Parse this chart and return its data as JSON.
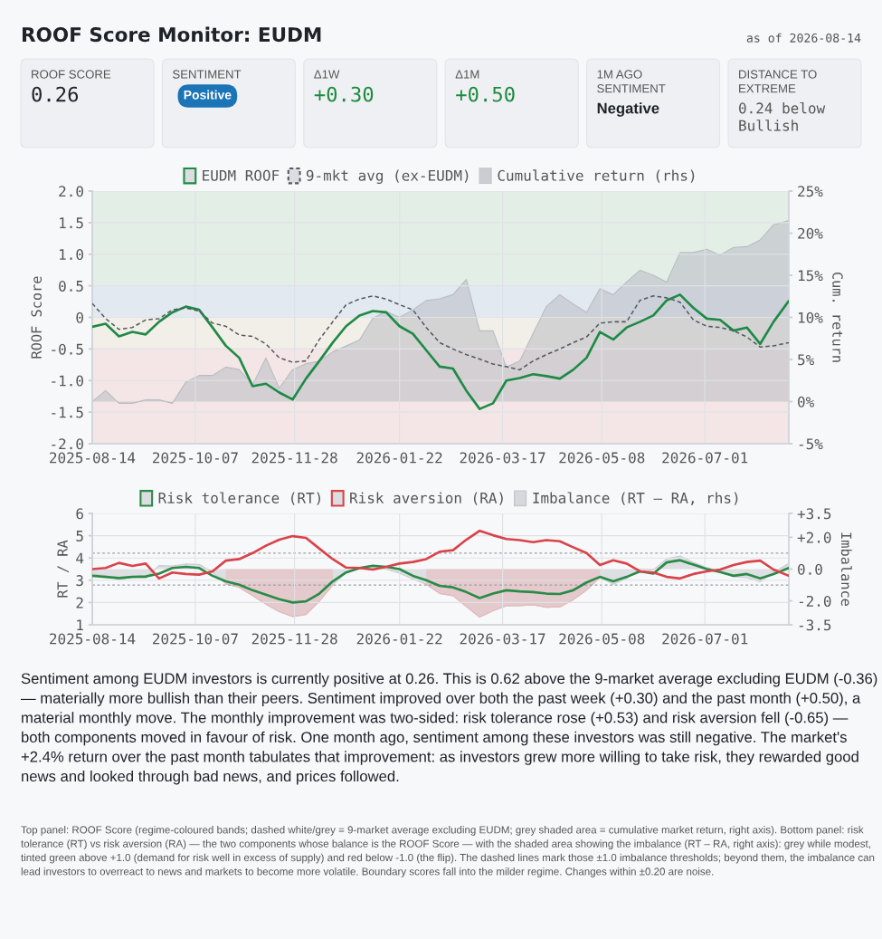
{
  "chart_data": [
    {
      "type": "other",
      "title": "ROOF Score Monitor: EUDM",
      "subtitle": "as of 2026-08-14",
      "annotations": [
        "ROOF SCORE",
        "0.26",
        "SENTIMENT",
        "Positive",
        "Δ1W",
        "+0.30",
        "Δ1M",
        "+0.50",
        "1M AGO SENTIMENT",
        "Negative",
        "DISTANCE TO EXTREME",
        "0.24 below Bullish"
      ]
    },
    {
      "type": "line",
      "ylabel": "ROOF Score",
      "y2label": "Cum. return",
      "x": [
        "2025-08-14",
        "2025-08-21",
        "2025-08-28",
        "2025-09-04",
        "2025-09-11",
        "2025-09-18",
        "2025-09-25",
        "2025-10-02",
        "2025-10-09",
        "2025-10-16",
        "2025-10-23",
        "2025-10-30",
        "2025-11-06",
        "2025-11-13",
        "2025-11-20",
        "2025-11-27",
        "2025-12-04",
        "2025-12-11",
        "2025-12-18",
        "2025-12-25",
        "2026-01-01",
        "2026-01-08",
        "2026-01-15",
        "2026-01-22",
        "2026-01-29",
        "2026-02-05",
        "2026-02-12",
        "2026-02-19",
        "2026-02-26",
        "2026-03-05",
        "2026-03-12",
        "2026-03-19",
        "2026-03-26",
        "2026-04-02",
        "2026-04-09",
        "2026-04-16",
        "2026-04-23",
        "2026-04-30",
        "2026-05-07",
        "2026-05-14",
        "2026-05-21",
        "2026-05-28",
        "2026-06-04",
        "2026-06-11",
        "2026-06-18",
        "2026-06-25",
        "2026-07-02",
        "2026-07-09",
        "2026-07-16",
        "2026-07-23",
        "2026-07-30",
        "2026-08-06",
        "2026-08-14"
      ],
      "series": [
        {
          "name": "EUDM ROOF",
          "type": "line",
          "color": "#1e8a45",
          "line_style": "solid",
          "values": [
            -0.15,
            -0.1,
            -0.3,
            -0.23,
            -0.27,
            -0.07,
            0.08,
            0.17,
            0.12,
            -0.16,
            -0.45,
            -0.64,
            -1.09,
            -1.05,
            -1.19,
            -1.3,
            -0.97,
            -0.69,
            -0.4,
            -0.14,
            0.03,
            0.1,
            0.08,
            -0.14,
            -0.26,
            -0.52,
            -0.78,
            -0.81,
            -1.16,
            -1.45,
            -1.36,
            -1.0,
            -0.96,
            -0.9,
            -0.93,
            -0.97,
            -0.83,
            -0.64,
            -0.23,
            -0.35,
            -0.16,
            -0.07,
            0.03,
            0.27,
            0.36,
            0.15,
            -0.02,
            -0.04,
            -0.21,
            -0.16,
            -0.42,
            -0.07,
            0.26
          ]
        },
        {
          "name": "9-mkt avg (ex-EUDM)",
          "type": "line",
          "color": "#555a60",
          "line_style": "dashed",
          "values": [
            0.22,
            -0.02,
            -0.19,
            -0.16,
            -0.04,
            -0.02,
            0.12,
            0.15,
            0.1,
            -0.09,
            -0.14,
            -0.28,
            -0.3,
            -0.42,
            -0.64,
            -0.71,
            -0.69,
            -0.35,
            -0.07,
            0.2,
            0.29,
            0.34,
            0.29,
            0.2,
            0.12,
            -0.16,
            -0.4,
            -0.5,
            -0.59,
            -0.66,
            -0.74,
            -0.78,
            -0.83,
            -0.69,
            -0.59,
            -0.5,
            -0.4,
            -0.31,
            -0.09,
            -0.07,
            -0.07,
            0.27,
            0.34,
            0.31,
            0.24,
            -0.04,
            -0.14,
            -0.16,
            -0.21,
            -0.31,
            -0.47,
            -0.45,
            -0.4
          ]
        },
        {
          "name": "Cumulative return (rhs)",
          "type": "area",
          "axis": "y2",
          "color": "#b9bcc2",
          "values": [
            0.0,
            1.3,
            -0.2,
            -0.2,
            0.2,
            0.2,
            -0.2,
            2.3,
            3.1,
            3.1,
            4.1,
            3.8,
            2.0,
            5.2,
            1.6,
            3.8,
            4.5,
            4.8,
            5.9,
            6.6,
            7.3,
            9.9,
            10.7,
            10.0,
            10.9,
            12.0,
            12.2,
            12.7,
            14.5,
            8.4,
            8.4,
            4.1,
            4.8,
            8.1,
            11.3,
            12.7,
            11.6,
            10.6,
            13.4,
            12.7,
            14.2,
            15.6,
            15.0,
            14.2,
            17.7,
            17.7,
            18.1,
            17.4,
            18.3,
            18.4,
            19.2,
            21.0,
            21.5
          ]
        }
      ],
      "xlim": [
        "2025-08-14",
        "2026-08-14"
      ],
      "xticks": [
        "2025-08-14",
        "2025-10-07",
        "2025-11-28",
        "2026-01-22",
        "2026-03-17",
        "2026-05-08",
        "2026-07-01"
      ],
      "ylim": [
        -2,
        2
      ],
      "yticks": [
        {
          "value": 2,
          "label": "2.0"
        },
        {
          "value": 1.5,
          "label": "1.5"
        },
        {
          "value": 1,
          "label": "1.0"
        },
        {
          "value": 0.5,
          "label": "0.5"
        },
        0,
        {
          "value": -0.5,
          "label": "-0.5"
        },
        {
          "value": -1,
          "label": "-1.0"
        },
        {
          "value": -1.5,
          "label": "-1.5"
        },
        {
          "value": -2,
          "label": "-2.0"
        }
      ],
      "y2lim": [
        -5,
        25
      ],
      "y2ticks": [
        {
          "value": 25,
          "label": "25%"
        },
        {
          "value": 20,
          "label": "20%"
        },
        {
          "value": 15,
          "label": "15%"
        },
        {
          "value": 10,
          "label": "10%"
        },
        {
          "value": 5,
          "label": "5%"
        },
        {
          "value": 0,
          "label": "0%"
        },
        {
          "value": -5,
          "label": "-5%"
        }
      ],
      "bands": [
        {
          "axis": "y",
          "from": 0.5,
          "to": 2,
          "color": "#e3eee6"
        },
        {
          "axis": "y",
          "from": 0,
          "to": 0.5,
          "color": "#e3e9f1"
        },
        {
          "axis": "y",
          "from": -0.5,
          "to": 0,
          "color": "#f2efe8"
        },
        {
          "axis": "y",
          "from": -2,
          "to": -0.5,
          "color": "#f4e6e6"
        }
      ],
      "grid": true,
      "legend": "top"
    },
    {
      "type": "line",
      "ylabel": "RT / RA",
      "y2label": "Imbalance",
      "x": [
        "2025-08-14",
        "2025-08-21",
        "2025-08-28",
        "2025-09-04",
        "2025-09-11",
        "2025-09-18",
        "2025-09-25",
        "2025-10-02",
        "2025-10-09",
        "2025-10-16",
        "2025-10-23",
        "2025-10-30",
        "2025-11-06",
        "2025-11-13",
        "2025-11-20",
        "2025-11-27",
        "2025-12-04",
        "2025-12-11",
        "2025-12-18",
        "2025-12-25",
        "2026-01-01",
        "2026-01-08",
        "2026-01-15",
        "2026-01-22",
        "2026-01-29",
        "2026-02-05",
        "2026-02-12",
        "2026-02-19",
        "2026-02-26",
        "2026-03-05",
        "2026-03-12",
        "2026-03-19",
        "2026-03-26",
        "2026-04-02",
        "2026-04-09",
        "2026-04-16",
        "2026-04-23",
        "2026-04-30",
        "2026-05-07",
        "2026-05-14",
        "2026-05-21",
        "2026-05-28",
        "2026-06-04",
        "2026-06-11",
        "2026-06-18",
        "2026-06-25",
        "2026-07-02",
        "2026-07-09",
        "2026-07-16",
        "2026-07-23",
        "2026-07-30",
        "2026-08-06",
        "2026-08-14"
      ],
      "series": [
        {
          "name": "Risk tolerance (RT)",
          "type": "line",
          "color": "#2a8a48",
          "values": [
            3.2,
            3.15,
            3.1,
            3.15,
            3.17,
            3.3,
            3.55,
            3.6,
            3.55,
            3.2,
            2.95,
            2.8,
            2.55,
            2.35,
            2.15,
            2.0,
            2.05,
            2.4,
            2.95,
            3.35,
            3.55,
            3.65,
            3.6,
            3.5,
            3.2,
            3.0,
            2.75,
            2.68,
            2.47,
            2.2,
            2.4,
            2.55,
            2.5,
            2.47,
            2.4,
            2.38,
            2.55,
            2.9,
            3.15,
            2.95,
            3.15,
            3.4,
            3.3,
            3.8,
            3.9,
            3.7,
            3.5,
            3.37,
            3.2,
            3.28,
            3.08,
            3.28,
            3.55
          ]
        },
        {
          "name": "Risk aversion (RA)",
          "type": "line",
          "color": "#d9434a",
          "values": [
            3.5,
            3.55,
            3.78,
            3.64,
            3.75,
            3.08,
            3.35,
            3.28,
            3.25,
            3.4,
            3.88,
            3.95,
            4.22,
            4.55,
            4.82,
            4.98,
            4.9,
            4.42,
            3.95,
            3.57,
            3.55,
            3.48,
            3.6,
            3.75,
            3.82,
            3.95,
            4.28,
            4.35,
            4.82,
            5.22,
            5.02,
            4.85,
            4.8,
            4.71,
            4.8,
            4.75,
            4.48,
            4.22,
            3.68,
            3.9,
            3.75,
            3.4,
            3.35,
            3.15,
            3.08,
            3.28,
            3.4,
            3.48,
            3.68,
            3.82,
            3.88,
            3.48,
            3.2
          ]
        },
        {
          "name": "Imbalance (RT – RA, rhs)",
          "type": "area",
          "axis": "y2",
          "color": "#c9cbcf",
          "values": [
            -0.3,
            -0.4,
            -0.68,
            -0.49,
            -0.58,
            0.22,
            0.2,
            0.32,
            0.3,
            -0.2,
            -0.93,
            -1.15,
            -1.67,
            -2.2,
            -2.67,
            -2.98,
            -2.85,
            -2.02,
            -1.0,
            -0.22,
            0,
            0.17,
            0,
            -0.25,
            -0.62,
            -0.95,
            -1.53,
            -1.67,
            -2.35,
            -3.02,
            -2.62,
            -2.3,
            -2.3,
            -2.24,
            -2.4,
            -2.37,
            -1.93,
            -1.32,
            -0.53,
            -0.95,
            -0.6,
            0,
            -0.05,
            0.65,
            0.82,
            0.42,
            0.1,
            -0.11,
            -0.48,
            -0.54,
            -0.8,
            -0.2,
            0.35
          ]
        },
        {
          "type": "area",
          "axis": "y2",
          "color": "#eab8ba",
          "values": [
            null,
            null,
            null,
            null,
            null,
            null,
            null,
            null,
            null,
            null,
            -0.93,
            -1.15,
            -1.67,
            -2.2,
            -2.67,
            -2.98,
            -2.85,
            -2.02,
            -1.0,
            null,
            null,
            null,
            null,
            null,
            null,
            -0.95,
            -1.53,
            -1.67,
            -2.35,
            -3.02,
            -2.62,
            -2.3,
            -2.3,
            -2.24,
            -2.4,
            -2.37,
            -1.93,
            -1.32,
            -0.53,
            null,
            null,
            null,
            null,
            null,
            null,
            null,
            null,
            null,
            null,
            null,
            null,
            null,
            null
          ]
        }
      ],
      "xlim": [
        "2025-08-14",
        "2026-08-14"
      ],
      "xticks": [
        "2025-08-14",
        "2025-10-07",
        "2025-11-28",
        "2026-01-22",
        "2026-03-17",
        "2026-05-08",
        "2026-07-01"
      ],
      "ylim": [
        1,
        6
      ],
      "yticks": [
        1,
        2,
        3,
        4,
        5,
        6
      ],
      "y2lim": [
        -3.5,
        3.5
      ],
      "y2ticks": [
        {
          "value": 3.5,
          "label": "+3.5"
        },
        {
          "value": 2,
          "label": "+2.0"
        },
        {
          "value": 0,
          "label": "0.0"
        },
        {
          "value": -2,
          "label": "-2.0"
        },
        {
          "value": -3.5,
          "label": "-3.5"
        }
      ],
      "ref_lines": [
        {
          "axis": "y2",
          "value": 1.0,
          "color": "#9a9ea5",
          "line_style": "dotted"
        },
        {
          "axis": "y2",
          "value": -1.0,
          "color": "#9a9ea5",
          "line_style": "dotted"
        }
      ],
      "grid": true,
      "legend": "top"
    },
    {
      "type": "other",
      "annotations": [
        "Sentiment among EUDM investors is currently positive at 0.26. This is 0.62 above the 9-market average excluding EUDM (-0.36) — materially more bullish than their peers. Sentiment improved over both the past week (+0.30) and the past month (+0.50), a material monthly move. The monthly improvement was two-sided: risk tolerance rose (+0.53) and risk aversion fell (-0.65) — both components moved in favour of risk. One month ago, sentiment among these investors was still negative. The market's +2.4% return over the past month tabulates that improvement: as investors grew more willing to take risk, they rewarded good news and looked through bad news, and prices followed.",
        "Top panel: ROOF Score (regime-coloured bands; dashed white/grey = 9-market average excluding EUDM; grey shaded area = cumulative market return, right axis). Bottom panel: risk tolerance (RT) vs risk aversion (RA) — the two components whose balance is the ROOF Score — with the shaded area showing the imbalance (RT – RA, right axis): grey while modest, tinted green above +1.0 (demand for risk well in excess of supply) and red below -1.0 (the flip). The dashed lines mark those ±1.0 imbalance thresholds; beyond them, the imbalance can lead investors to overreact to news and markets to become more volatile. Boundary scores fall into the milder regime. Changes within ±0.20 are noise."
      ]
    }
  ]
}
